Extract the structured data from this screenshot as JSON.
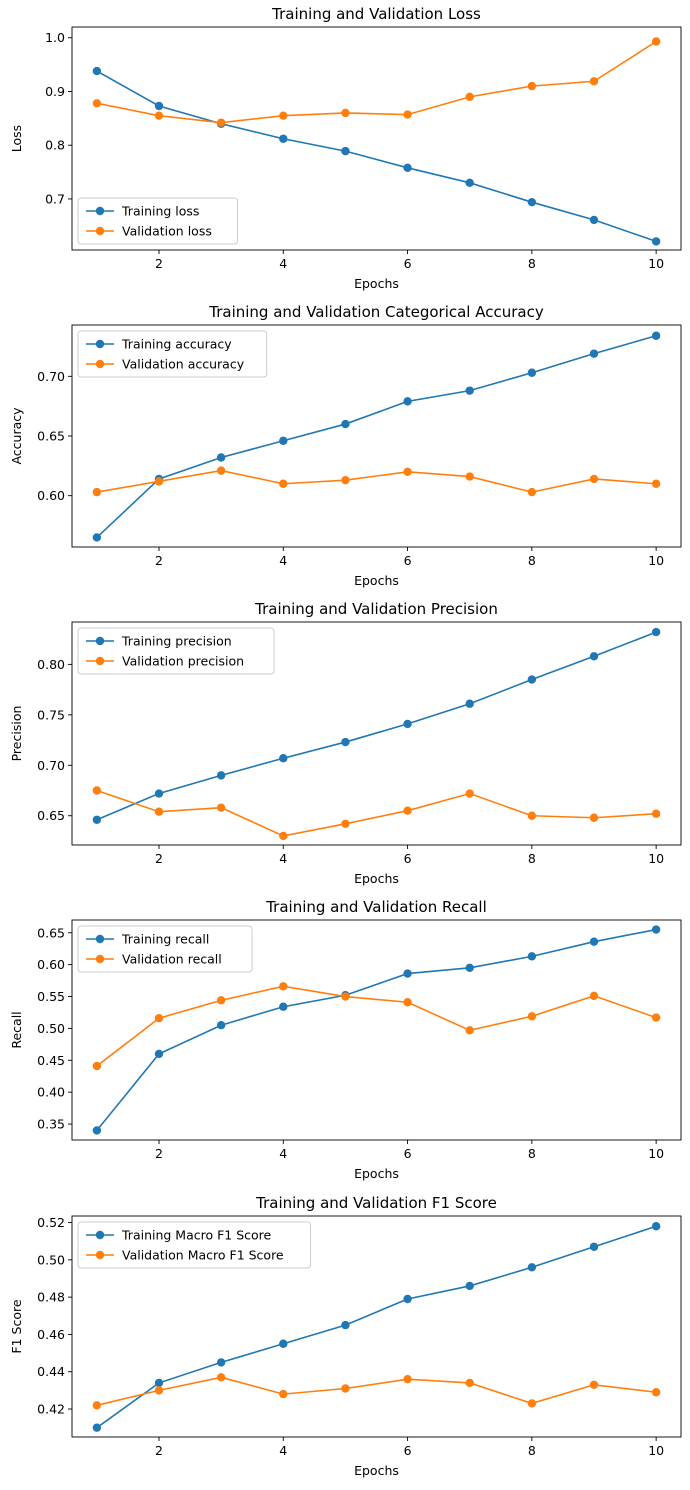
{
  "chart_data": [
    {
      "type": "line",
      "title": "Training and Validation Loss",
      "xlabel": "Epochs",
      "ylabel": "Loss",
      "x": [
        1,
        2,
        3,
        4,
        5,
        6,
        7,
        8,
        9,
        10
      ],
      "xlim": [
        0.6,
        10.4
      ],
      "ylim": [
        0.605,
        1.02
      ],
      "xticks": [
        2,
        4,
        6,
        8,
        10
      ],
      "yticks": [
        0.7,
        0.8,
        0.9,
        1.0
      ],
      "ytick_labels": [
        "0.7",
        "0.8",
        "0.9",
        "1.0"
      ],
      "legend_position": "lower-left",
      "series": [
        {
          "name": "Training loss",
          "color": "#1f77b4",
          "values": [
            0.938,
            0.873,
            0.84,
            0.812,
            0.789,
            0.758,
            0.73,
            0.694,
            0.661,
            0.621
          ]
        },
        {
          "name": "Validation loss",
          "color": "#ff7f0e",
          "values": [
            0.878,
            0.855,
            0.842,
            0.855,
            0.86,
            0.857,
            0.89,
            0.91,
            0.919,
            0.993
          ]
        }
      ]
    },
    {
      "type": "line",
      "title": "Training and Validation Categorical Accuracy",
      "xlabel": "Epochs",
      "ylabel": "Accuracy",
      "x": [
        1,
        2,
        3,
        4,
        5,
        6,
        7,
        8,
        9,
        10
      ],
      "xlim": [
        0.6,
        10.4
      ],
      "ylim": [
        0.557,
        0.743
      ],
      "xticks": [
        2,
        4,
        6,
        8,
        10
      ],
      "yticks": [
        0.6,
        0.65,
        0.7
      ],
      "ytick_labels": [
        "0.60",
        "0.65",
        "0.70"
      ],
      "legend_position": "upper-left",
      "series": [
        {
          "name": "Training accuracy",
          "color": "#1f77b4",
          "values": [
            0.565,
            0.614,
            0.632,
            0.646,
            0.66,
            0.679,
            0.688,
            0.703,
            0.719,
            0.734
          ]
        },
        {
          "name": "Validation accuracy",
          "color": "#ff7f0e",
          "values": [
            0.603,
            0.612,
            0.621,
            0.61,
            0.613,
            0.62,
            0.616,
            0.603,
            0.614,
            0.61
          ]
        }
      ]
    },
    {
      "type": "line",
      "title": "Training and Validation Precision",
      "xlabel": "Epochs",
      "ylabel": "Precision",
      "x": [
        1,
        2,
        3,
        4,
        5,
        6,
        7,
        8,
        9,
        10
      ],
      "xlim": [
        0.6,
        10.4
      ],
      "ylim": [
        0.621,
        0.842
      ],
      "xticks": [
        2,
        4,
        6,
        8,
        10
      ],
      "yticks": [
        0.65,
        0.7,
        0.75,
        0.8
      ],
      "ytick_labels": [
        "0.65",
        "0.70",
        "0.75",
        "0.80"
      ],
      "legend_position": "upper-left",
      "series": [
        {
          "name": "Training precision",
          "color": "#1f77b4",
          "values": [
            0.646,
            0.672,
            0.69,
            0.707,
            0.723,
            0.741,
            0.761,
            0.785,
            0.808,
            0.832
          ]
        },
        {
          "name": "Validation precision",
          "color": "#ff7f0e",
          "values": [
            0.675,
            0.654,
            0.658,
            0.63,
            0.642,
            0.655,
            0.672,
            0.65,
            0.648,
            0.652
          ]
        }
      ]
    },
    {
      "type": "line",
      "title": "Training and Validation Recall",
      "xlabel": "Epochs",
      "ylabel": "Recall",
      "x": [
        1,
        2,
        3,
        4,
        5,
        6,
        7,
        8,
        9,
        10
      ],
      "xlim": [
        0.6,
        10.4
      ],
      "ylim": [
        0.325,
        0.67
      ],
      "xticks": [
        2,
        4,
        6,
        8,
        10
      ],
      "yticks": [
        0.35,
        0.4,
        0.45,
        0.5,
        0.55,
        0.6,
        0.65
      ],
      "ytick_labels": [
        "0.35",
        "0.40",
        "0.45",
        "0.50",
        "0.55",
        "0.60",
        "0.65"
      ],
      "legend_position": "upper-left",
      "series": [
        {
          "name": "Training recall",
          "color": "#1f77b4",
          "values": [
            0.34,
            0.46,
            0.505,
            0.534,
            0.552,
            0.586,
            0.595,
            0.613,
            0.636,
            0.655
          ]
        },
        {
          "name": "Validation recall",
          "color": "#ff7f0e",
          "values": [
            0.441,
            0.516,
            0.544,
            0.566,
            0.55,
            0.541,
            0.497,
            0.519,
            0.551,
            0.517
          ]
        }
      ]
    },
    {
      "type": "line",
      "title": "Training and Validation F1 Score",
      "xlabel": "Epochs",
      "ylabel": "F1 Score",
      "x": [
        1,
        2,
        3,
        4,
        5,
        6,
        7,
        8,
        9,
        10
      ],
      "xlim": [
        0.6,
        10.4
      ],
      "ylim": [
        0.405,
        0.5235
      ],
      "xticks": [
        2,
        4,
        6,
        8,
        10
      ],
      "yticks": [
        0.42,
        0.44,
        0.46,
        0.48,
        0.5,
        0.52
      ],
      "ytick_labels": [
        "0.42",
        "0.44",
        "0.46",
        "0.48",
        "0.50",
        "0.52"
      ],
      "legend_position": "upper-left",
      "series": [
        {
          "name": "Training Macro F1 Score",
          "color": "#1f77b4",
          "values": [
            0.41,
            0.434,
            0.445,
            0.455,
            0.465,
            0.479,
            0.486,
            0.496,
            0.507,
            0.518
          ]
        },
        {
          "name": "Validation Macro F1 Score",
          "color": "#ff7f0e",
          "values": [
            0.422,
            0.43,
            0.437,
            0.428,
            0.431,
            0.436,
            0.434,
            0.423,
            0.433,
            0.429
          ]
        }
      ]
    }
  ]
}
